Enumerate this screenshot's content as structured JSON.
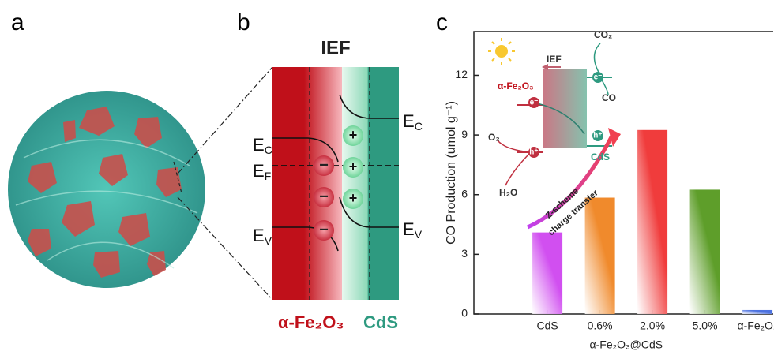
{
  "panels": {
    "a": "a",
    "b": "b",
    "c": "c"
  },
  "band_diagram": {
    "title": "IEF",
    "left_levels": [
      {
        "main": "E",
        "sub": "C"
      },
      {
        "main": "E",
        "sub": "F"
      },
      {
        "main": "E",
        "sub": "V"
      }
    ],
    "right_levels": [
      {
        "main": "E",
        "sub": "C"
      },
      {
        "main": "E",
        "sub": "V"
      }
    ],
    "minus": [
      "−",
      "−",
      "−"
    ],
    "plus": [
      "+",
      "+",
      "+"
    ],
    "left_material": "α-Fe₂O₃",
    "right_material": "CdS"
  },
  "chart_data": {
    "type": "bar",
    "ylabel": "CO Production (umol g⁻¹)",
    "categories": [
      "CdS",
      "0.6%",
      "2.0%",
      "5.0%",
      "α-Fe₂O₃"
    ],
    "group_label": "α-Fe₂O₃@CdS",
    "values": [
      4.1,
      5.85,
      9.25,
      6.25,
      0.2
    ],
    "colors": [
      "#d14ff0",
      "#f08a2c",
      "#f03c3c",
      "#5e9e2a",
      "#4d72e0"
    ],
    "ylim": [
      0,
      14.2
    ],
    "yticks": [
      0,
      3,
      6,
      9,
      12
    ],
    "inset": {
      "ief": "IEF",
      "co2": "CO₂",
      "co": "CO",
      "o2": "O₂",
      "h2o": "H₂O",
      "fe": "α-Fe₂O₃",
      "cds": "CdS",
      "e1": "e⁻",
      "e2": "e⁻",
      "h1": "h⁺",
      "h2": "h⁺",
      "z1": "Z-scheme",
      "z2": "charge transfer"
    }
  }
}
